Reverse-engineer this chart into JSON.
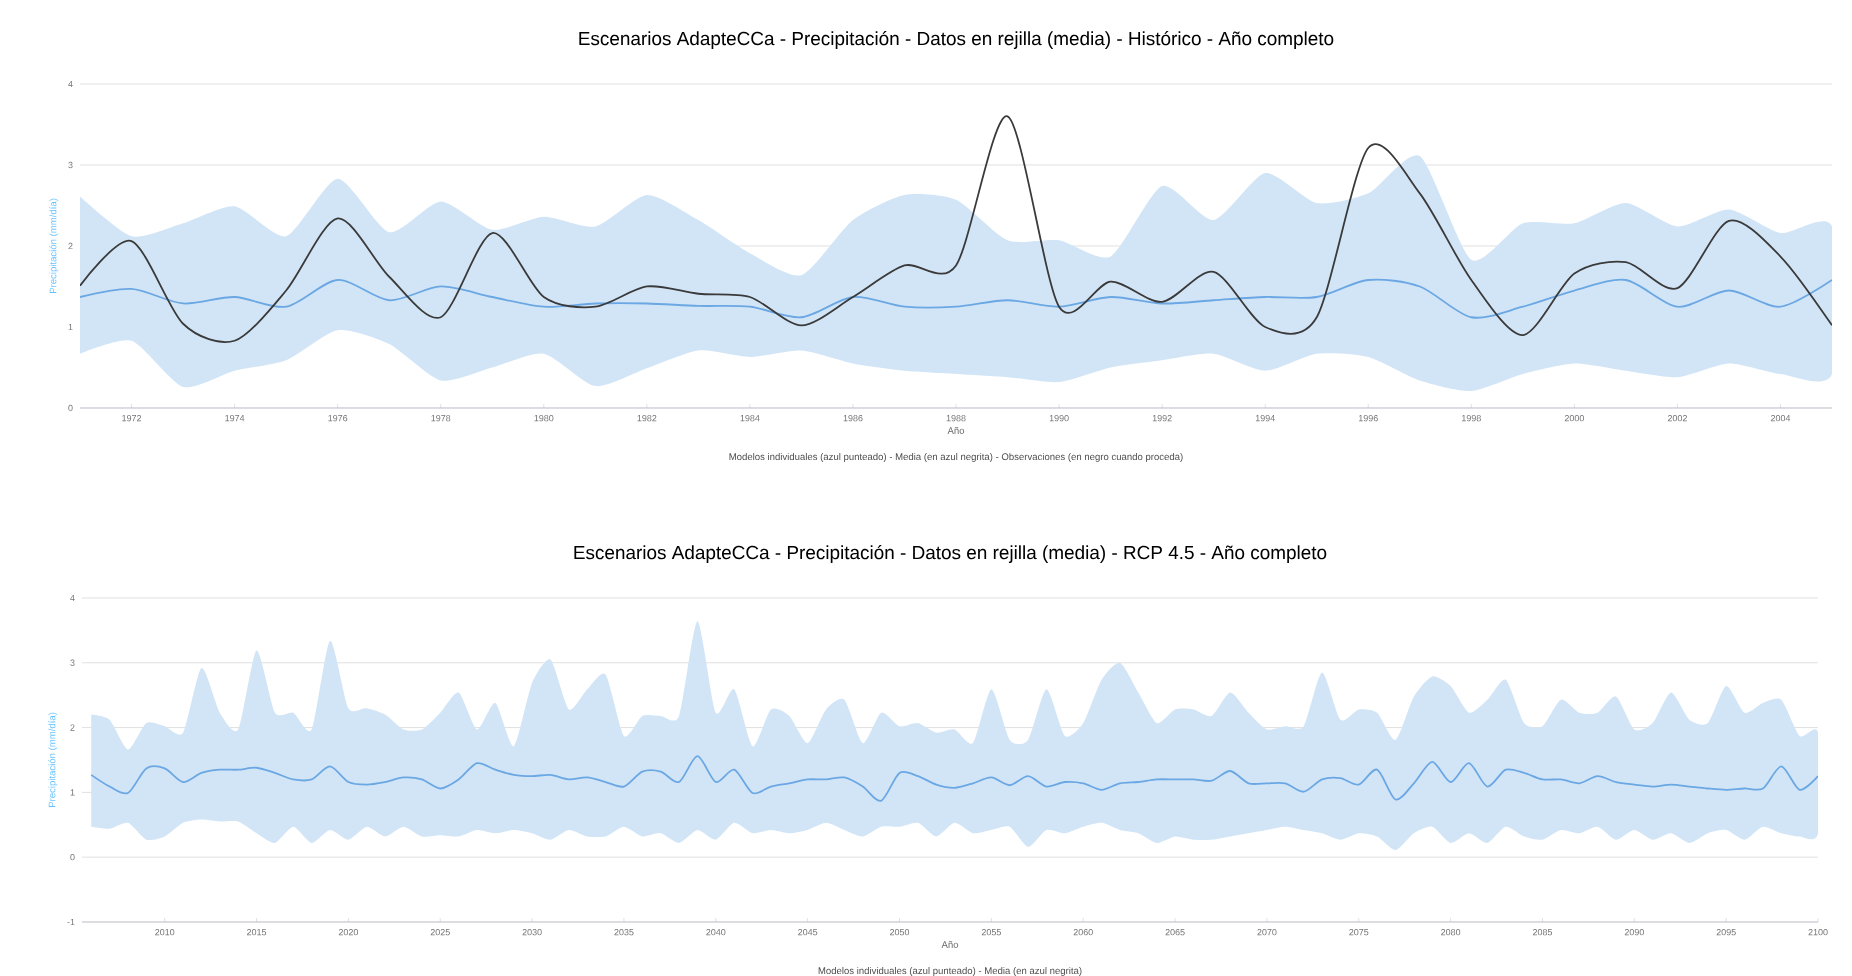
{
  "chart_data": [
    {
      "type": "line",
      "title": "Escenarios AdapteCCa - Precipitación - Datos en rejilla (media) - Histórico - Año completo",
      "xlabel": "Año",
      "ylabel": "Precipitación (mm/día)",
      "annotations": [
        "Modelos individuales (azul punteado) - Media (en azul negrita) - Observaciones (en negro cuando proceda)"
      ],
      "grid": "y",
      "xlim": [
        1971,
        2005
      ],
      "ylim": [
        0,
        4
      ],
      "xticks": [
        1972,
        1974,
        1976,
        1978,
        1980,
        1982,
        1984,
        1986,
        1988,
        1990,
        1992,
        1994,
        1996,
        1998,
        2000,
        2002,
        2004
      ],
      "yticks": [
        0,
        1,
        2,
        3,
        4
      ],
      "x": [
        1971,
        1972,
        1973,
        1974,
        1975,
        1976,
        1977,
        1978,
        1979,
        1980,
        1981,
        1982,
        1983,
        1984,
        1985,
        1986,
        1987,
        1988,
        1989,
        1990,
        1991,
        1992,
        1993,
        1994,
        1995,
        1996,
        1997,
        1998,
        1999,
        2000,
        2001,
        2002,
        2003,
        2004,
        2005
      ],
      "series": [
        {
          "color": "#6aa7e3",
          "values": [
            1.37,
            1.47,
            1.29,
            1.37,
            1.25,
            1.58,
            1.33,
            1.5,
            1.37,
            1.25,
            1.29,
            1.29,
            1.26,
            1.25,
            1.12,
            1.37,
            1.25,
            1.25,
            1.33,
            1.25,
            1.37,
            1.29,
            1.33,
            1.37,
            1.37,
            1.58,
            1.5,
            1.12,
            1.25,
            1.45,
            1.58,
            1.25,
            1.45,
            1.25,
            1.58
          ],
          "lower": [
            0.67,
            0.83,
            0.26,
            0.46,
            0.59,
            0.96,
            0.79,
            0.34,
            0.5,
            0.67,
            0.27,
            0.49,
            0.71,
            0.63,
            0.71,
            0.55,
            0.46,
            0.42,
            0.38,
            0.32,
            0.5,
            0.59,
            0.67,
            0.46,
            0.67,
            0.63,
            0.34,
            0.21,
            0.42,
            0.55,
            0.46,
            0.38,
            0.55,
            0.42,
            0.42
          ],
          "upper": [
            2.61,
            2.12,
            2.28,
            2.49,
            2.12,
            2.83,
            2.17,
            2.55,
            2.2,
            2.36,
            2.24,
            2.63,
            2.32,
            1.91,
            1.64,
            2.32,
            2.63,
            2.57,
            2.07,
            2.07,
            1.87,
            2.74,
            2.32,
            2.9,
            2.53,
            2.65,
            3.11,
            1.83,
            2.28,
            2.28,
            2.53,
            2.24,
            2.45,
            2.16,
            2.24
          ]
        },
        {
          "color": "#3a3a3a",
          "values": [
            1.51,
            2.06,
            1.04,
            0.83,
            1.45,
            2.34,
            1.62,
            1.12,
            2.16,
            1.37,
            1.25,
            1.5,
            1.41,
            1.37,
            1.02,
            1.37,
            1.76,
            1.76,
            3.6,
            1.25,
            1.56,
            1.31,
            1.68,
            1.0,
            1.12,
            3.21,
            2.65,
            1.58,
            0.9,
            1.66,
            1.8,
            1.48,
            2.31,
            1.87,
            1.02
          ]
        }
      ]
    },
    {
      "type": "line",
      "title": "Escenarios AdapteCCa - Precipitación - Datos en rejilla (media) - RCP 4.5 - Año completo",
      "xlabel": "Año",
      "ylabel": "Precipitación (mm/día)",
      "annotations": [
        "Modelos individuales (azul punteado) - Media (en azul negrita)"
      ],
      "grid": "y",
      "xlim": [
        2005.5,
        2100
      ],
      "ylim": [
        -1,
        4
      ],
      "xticks": [
        2010,
        2015,
        2020,
        2025,
        2030,
        2035,
        2040,
        2045,
        2050,
        2055,
        2060,
        2065,
        2070,
        2075,
        2080,
        2085,
        2090,
        2095,
        2100
      ],
      "yticks": [
        -1,
        0,
        1,
        2,
        3,
        4
      ],
      "x": [
        2006,
        2007,
        2008,
        2009,
        2010,
        2011,
        2012,
        2013,
        2014,
        2015,
        2016,
        2017,
        2018,
        2019,
        2020,
        2021,
        2022,
        2023,
        2024,
        2025,
        2026,
        2027,
        2028,
        2029,
        2030,
        2031,
        2032,
        2033,
        2034,
        2035,
        2036,
        2037,
        2038,
        2039,
        2040,
        2041,
        2042,
        2043,
        2044,
        2045,
        2046,
        2047,
        2048,
        2049,
        2050,
        2051,
        2052,
        2053,
        2054,
        2055,
        2056,
        2057,
        2058,
        2059,
        2060,
        2061,
        2062,
        2063,
        2064,
        2065,
        2066,
        2067,
        2068,
        2069,
        2070,
        2071,
        2072,
        2073,
        2074,
        2075,
        2076,
        2077,
        2078,
        2079,
        2080,
        2081,
        2082,
        2083,
        2084,
        2085,
        2086,
        2087,
        2088,
        2089,
        2090,
        2091,
        2092,
        2093,
        2094,
        2095,
        2096,
        2097,
        2098,
        2099,
        2100
      ],
      "series": [
        {
          "color": "#6aa7e3",
          "values": [
            1.27,
            1.09,
            0.99,
            1.37,
            1.37,
            1.16,
            1.3,
            1.35,
            1.35,
            1.38,
            1.3,
            1.2,
            1.2,
            1.4,
            1.16,
            1.12,
            1.16,
            1.23,
            1.2,
            1.06,
            1.2,
            1.45,
            1.35,
            1.27,
            1.25,
            1.27,
            1.2,
            1.23,
            1.16,
            1.09,
            1.32,
            1.32,
            1.16,
            1.56,
            1.16,
            1.35,
            0.99,
            1.09,
            1.14,
            1.2,
            1.2,
            1.23,
            1.09,
            0.87,
            1.3,
            1.25,
            1.12,
            1.07,
            1.14,
            1.23,
            1.11,
            1.25,
            1.09,
            1.16,
            1.14,
            1.04,
            1.14,
            1.16,
            1.2,
            1.2,
            1.2,
            1.18,
            1.33,
            1.14,
            1.14,
            1.14,
            1.01,
            1.2,
            1.22,
            1.12,
            1.35,
            0.89,
            1.14,
            1.47,
            1.16,
            1.45,
            1.09,
            1.35,
            1.3,
            1.2,
            1.2,
            1.14,
            1.25,
            1.16,
            1.12,
            1.09,
            1.12,
            1.09,
            1.06,
            1.04,
            1.06,
            1.06,
            1.4,
            1.04,
            1.25
          ],
          "lower": [
            0.47,
            0.44,
            0.53,
            0.27,
            0.32,
            0.53,
            0.58,
            0.55,
            0.55,
            0.37,
            0.22,
            0.47,
            0.22,
            0.42,
            0.27,
            0.47,
            0.32,
            0.47,
            0.32,
            0.34,
            0.32,
            0.42,
            0.37,
            0.42,
            0.37,
            0.27,
            0.42,
            0.32,
            0.32,
            0.47,
            0.32,
            0.37,
            0.22,
            0.42,
            0.27,
            0.53,
            0.37,
            0.42,
            0.37,
            0.42,
            0.53,
            0.42,
            0.32,
            0.47,
            0.47,
            0.53,
            0.32,
            0.53,
            0.37,
            0.42,
            0.47,
            0.16,
            0.42,
            0.37,
            0.47,
            0.53,
            0.42,
            0.37,
            0.22,
            0.32,
            0.27,
            0.27,
            0.32,
            0.37,
            0.42,
            0.47,
            0.42,
            0.37,
            0.27,
            0.37,
            0.32,
            0.11,
            0.37,
            0.47,
            0.22,
            0.37,
            0.22,
            0.47,
            0.32,
            0.27,
            0.42,
            0.37,
            0.47,
            0.27,
            0.42,
            0.27,
            0.37,
            0.22,
            0.37,
            0.42,
            0.27,
            0.47,
            0.37,
            0.32,
            0.37
          ],
          "upper": [
            2.2,
            2.12,
            1.66,
            2.07,
            2.02,
            1.92,
            2.92,
            2.23,
            1.97,
            3.19,
            2.23,
            2.23,
            1.97,
            3.34,
            2.3,
            2.3,
            2.2,
            1.97,
            1.97,
            2.23,
            2.54,
            1.97,
            2.38,
            1.71,
            2.69,
            3.05,
            2.28,
            2.59,
            2.82,
            1.87,
            2.18,
            2.18,
            2.18,
            3.64,
            2.23,
            2.59,
            1.71,
            2.28,
            2.18,
            1.76,
            2.28,
            2.43,
            1.76,
            2.23,
            2.02,
            2.07,
            1.92,
            1.97,
            1.76,
            2.59,
            1.81,
            1.81,
            2.59,
            1.87,
            2.07,
            2.74,
            3.0,
            2.54,
            2.07,
            2.28,
            2.28,
            2.18,
            2.54,
            2.23,
            1.97,
            2.02,
            2.02,
            2.85,
            2.12,
            2.28,
            2.23,
            1.81,
            2.48,
            2.79,
            2.64,
            2.23,
            2.43,
            2.74,
            2.07,
            2.02,
            2.43,
            2.23,
            2.23,
            2.48,
            1.97,
            2.07,
            2.54,
            2.12,
            2.07,
            2.64,
            2.23,
            2.38,
            2.43,
            1.87,
            1.92
          ]
        }
      ]
    }
  ]
}
